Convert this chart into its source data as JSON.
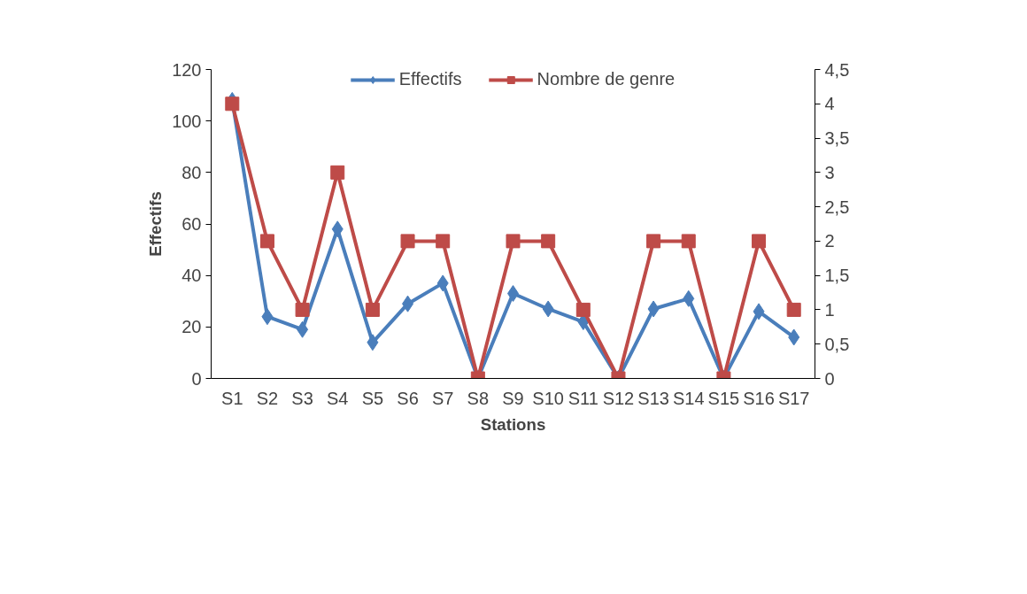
{
  "chart_data": {
    "type": "line",
    "xlabel": "Stations",
    "ylabel": "Effectifs",
    "categories": [
      "S1",
      "S2",
      "S3",
      "S4",
      "S5",
      "S6",
      "S7",
      "S8",
      "S9",
      "S10",
      "S11",
      "S12",
      "S13",
      "S14",
      "S15",
      "S16",
      "S17"
    ],
    "series": [
      {
        "name": "Effectifs",
        "color": "#4a7ebb",
        "marker": "diamond",
        "values": [
          108,
          24,
          19,
          58,
          14,
          29,
          37,
          0,
          33,
          27,
          22,
          0,
          27,
          31,
          0,
          26,
          16
        ]
      },
      {
        "name": "Nombre de genre",
        "color": "#be4b48",
        "marker": "square",
        "axis": "y2",
        "values": [
          4,
          2,
          1,
          3,
          1,
          2,
          2,
          0,
          2,
          2,
          1,
          0,
          2,
          2,
          0,
          2,
          1
        ]
      }
    ],
    "ylim": [
      0,
      120
    ],
    "yticks": [
      0,
      20,
      40,
      60,
      80,
      100,
      120
    ],
    "y2lim": [
      0,
      4.5
    ],
    "y2ticks": [
      0,
      {
        "value": 0.5,
        "label": "0,5"
      },
      1,
      {
        "value": 1.5,
        "label": "1,5"
      },
      2,
      {
        "value": 2.5,
        "label": "2,5"
      },
      3,
      {
        "value": 3.5,
        "label": "3,5"
      },
      4,
      {
        "value": 4.5,
        "label": "4,5"
      }
    ],
    "grid": false,
    "legend": "top",
    "line_style": "solid"
  }
}
